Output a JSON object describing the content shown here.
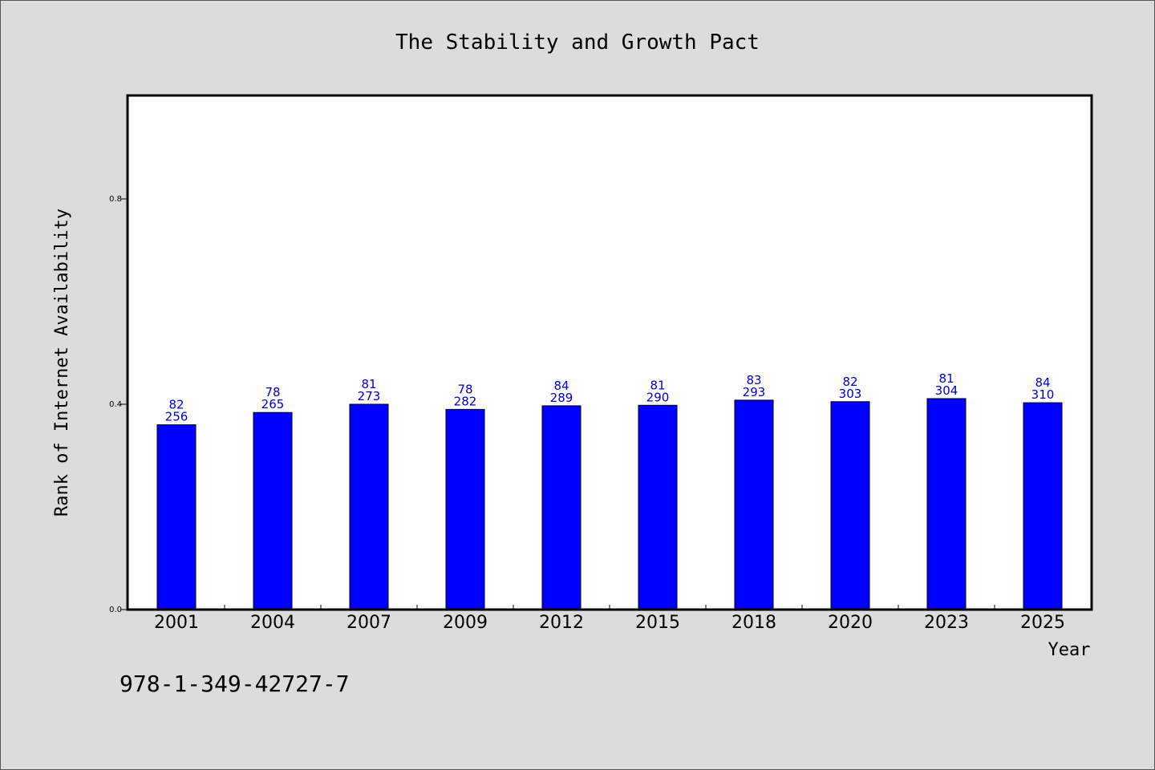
{
  "chart_data": {
    "type": "bar",
    "title": "The Stability and Growth Pact",
    "xlabel": "Year",
    "ylabel": "Rank of Internet Availability",
    "categories": [
      "2001",
      "2004",
      "2007",
      "2009",
      "2012",
      "2015",
      "2018",
      "2020",
      "2023",
      "2025"
    ],
    "series": [
      {
        "values": [
          0.36,
          0.384,
          0.4,
          0.39,
          0.397,
          0.398,
          0.408,
          0.405,
          0.411,
          0.403
        ],
        "color": "#0000ff"
      }
    ],
    "data_labels_top": [
      "82",
      "78",
      "81",
      "78",
      "84",
      "81",
      "83",
      "82",
      "81",
      "84"
    ],
    "data_labels_bottom": [
      "256",
      "265",
      "273",
      "282",
      "289",
      "290",
      "293",
      "303",
      "304",
      "310"
    ],
    "yticks": [
      "0.0",
      "0.4",
      "0.8"
    ],
    "ylim": [
      0,
      1.0
    ],
    "grid": false,
    "legend": "none"
  },
  "footer": {
    "code": "978-1-349-42727-7"
  },
  "colors": {
    "background": "#dcdcdc",
    "plot_background": "#ffffff",
    "bar": "#0000ff",
    "label": "#0000cc"
  }
}
